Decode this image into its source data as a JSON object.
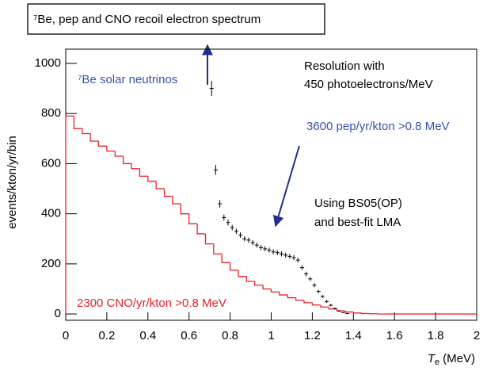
{
  "chart_data": {
    "type": "histogram",
    "title": "⁷Be, pep and CNO recoil electron spectrum",
    "ylabel": "events/kton/yr/bin",
    "xlabel": {
      "symbol": "T",
      "subscript": "e",
      "unit": "(MeV)"
    },
    "xlim": [
      0,
      2
    ],
    "ylim": [
      -25,
      1057
    ],
    "xticks": [
      0,
      0.2,
      0.4,
      0.6,
      0.8,
      1,
      1.2,
      1.4,
      1.6,
      1.8,
      2
    ],
    "yticks": [
      0,
      200,
      400,
      600,
      800,
      1000
    ],
    "series": [
      {
        "type": "histogram",
        "color": "#e8202a",
        "bins": [
          0,
          0.04,
          0.08,
          0.12,
          0.16,
          0.2,
          0.24,
          0.28,
          0.32,
          0.36,
          0.4,
          0.44,
          0.48,
          0.52,
          0.56,
          0.6,
          0.64,
          0.68,
          0.72,
          0.76,
          0.8,
          0.84,
          0.88,
          0.92,
          0.96,
          1,
          1.04,
          1.08,
          1.12,
          1.16,
          1.2,
          1.24,
          1.28,
          1.32,
          1.36,
          1.4,
          1.44,
          1.48,
          1.52,
          1.56,
          1.6,
          1.64,
          1.68,
          1.72,
          1.76,
          1.8,
          1.84,
          1.88,
          1.92,
          1.96,
          2
        ],
        "values": [
          790,
          740,
          720,
          690,
          670,
          650,
          630,
          600,
          580,
          550,
          530,
          500,
          470,
          440,
          400,
          360,
          320,
          280,
          240,
          205,
          175,
          150,
          130,
          115,
          100,
          88,
          76,
          65,
          55,
          45,
          36,
          28,
          20,
          13,
          8,
          4,
          2,
          1,
          0,
          0,
          0,
          0,
          0,
          0,
          0,
          0,
          0,
          0,
          0,
          0
        ]
      },
      {
        "type": "scatter",
        "color": "#000000",
        "x": [
          0.71,
          0.73,
          0.75,
          0.77,
          0.79,
          0.81,
          0.83,
          0.85,
          0.87,
          0.89,
          0.91,
          0.93,
          0.95,
          0.97,
          0.99,
          1.01,
          1.03,
          1.05,
          1.07,
          1.09,
          1.11,
          1.13,
          1.15,
          1.17,
          1.19,
          1.21,
          1.23,
          1.25,
          1.27,
          1.29,
          1.31,
          1.33,
          1.35,
          1.37
        ],
        "values": [
          900,
          575,
          440,
          385,
          365,
          345,
          330,
          315,
          300,
          295,
          285,
          275,
          265,
          260,
          255,
          248,
          245,
          240,
          235,
          230,
          225,
          215,
          185,
          160,
          140,
          115,
          90,
          70,
          50,
          35,
          22,
          12,
          6,
          2
        ],
        "errors": [
          30,
          20,
          15,
          12,
          12,
          11,
          11,
          11,
          10,
          10,
          10,
          10,
          10,
          10,
          10,
          10,
          10,
          10,
          10,
          10,
          10,
          10,
          9,
          9,
          8,
          8,
          7,
          6,
          6,
          5,
          4,
          3,
          2,
          2
        ]
      }
    ],
    "annotations": [
      {
        "text": "⁷Be solar neutrinos",
        "color": "#3a52a8"
      },
      {
        "text": "Resolution with",
        "color": "#000000"
      },
      {
        "text": "450 photoelectrons/MeV",
        "color": "#000000"
      },
      {
        "text": "3600 pep/yr/kton >0.8 MeV",
        "color": "#3a52a8"
      },
      {
        "text": "Using BS05(OP)",
        "color": "#000000"
      },
      {
        "text": "and best-fit LMA",
        "color": "#000000"
      },
      {
        "text": "2300 CNO/yr/kton >0.8 MeV",
        "color": "#e8202a"
      }
    ]
  }
}
